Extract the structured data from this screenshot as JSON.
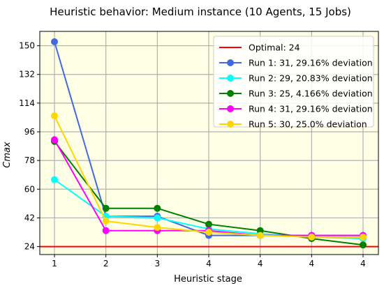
{
  "chart_data": {
    "type": "line",
    "title": "Heuristic behavior: Medium instance (10 Agents, 15 Jobs)",
    "xlabel": "Heuristic stage",
    "ylabel": "Cmax",
    "x_tick_labels": [
      "1",
      "2",
      "3",
      "4",
      "4",
      "4",
      "4"
    ],
    "yticks": [
      24,
      42,
      60,
      78,
      96,
      114,
      132,
      150
    ],
    "ylim": [
      19,
      159
    ],
    "grid": true,
    "plot_background": "#ffffe6",
    "legend_position": "top-right",
    "optimal": {
      "label": "Optimal: 24",
      "value": 24,
      "color": "#ff0000"
    },
    "series": [
      {
        "name": "Run 1:  31, 29.16% deviation",
        "color": "#4169e1",
        "values": [
          152.5,
          43,
          43,
          31,
          31,
          31,
          31
        ]
      },
      {
        "name": "Run 2:  29, 20.83% deviation",
        "color": "#00ffff",
        "values": [
          66,
          43,
          42,
          35,
          32,
          30,
          29
        ]
      },
      {
        "name": "Run 3:  25, 4.166% deviation",
        "color": "#008000",
        "values": [
          90,
          48,
          48,
          38,
          34,
          29,
          25
        ]
      },
      {
        "name": "Run 4:  31, 29.16% deviation",
        "color": "#ff00ff",
        "values": [
          91,
          34,
          34,
          34,
          31,
          31,
          31
        ]
      },
      {
        "name": "Run 5:  30, 25.0% deviation",
        "color": "#ffd700",
        "values": [
          106,
          40,
          36,
          33,
          31,
          30,
          30
        ]
      }
    ]
  }
}
